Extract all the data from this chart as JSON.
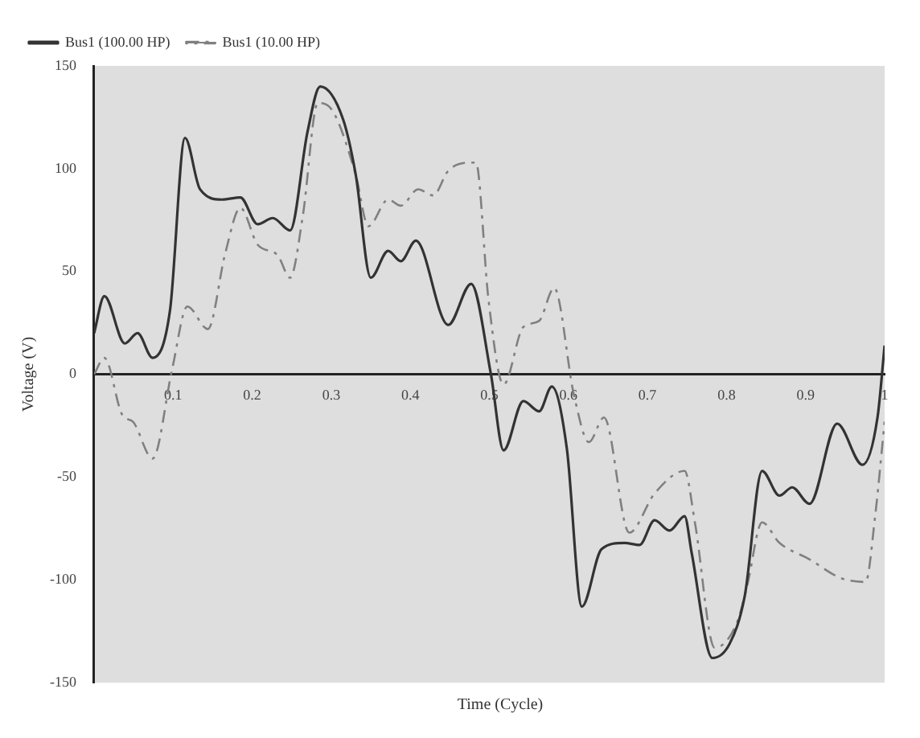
{
  "chart_data": {
    "type": "line",
    "xlabel": "Time (Cycle)",
    "ylabel": "Voltage (V)",
    "xlim": [
      0,
      1.0
    ],
    "xticks": [
      0.1,
      0.2,
      0.3,
      0.4,
      0.5,
      0.6,
      0.7,
      0.8,
      0.9,
      1.0
    ],
    "ylim": [
      -150,
      150
    ],
    "yticks": [
      -150,
      -100,
      -50,
      0,
      50,
      100,
      150
    ],
    "grid": false,
    "legend": "top left",
    "marker": "none",
    "series": [
      {
        "name": "Bus1 (100.00 HP)",
        "color": "#333333",
        "line_style": "solid",
        "x": [
          0,
          0.013,
          0.039,
          0.055,
          0.074,
          0.096,
          0.115,
          0.134,
          0.162,
          0.185,
          0.207,
          0.226,
          0.248,
          0.27,
          0.286,
          0.315,
          0.331,
          0.35,
          0.372,
          0.388,
          0.407,
          0.448,
          0.477,
          0.502,
          0.518,
          0.543,
          0.563,
          0.579,
          0.598,
          0.617,
          0.642,
          0.671,
          0.69,
          0.709,
          0.728,
          0.747,
          0.756,
          0.782,
          0.804,
          0.823,
          0.845,
          0.867,
          0.883,
          0.905,
          0.94,
          0.972,
          0.991,
          1.0
        ],
        "values": [
          20,
          38,
          15,
          20,
          8,
          31,
          115,
          90,
          85,
          86,
          73,
          76,
          70,
          118,
          140,
          124,
          97,
          47,
          60,
          55,
          65,
          24,
          44,
          0,
          -37,
          -13,
          -18,
          -6,
          -36,
          -113,
          -85,
          -82,
          -83,
          -71,
          -76,
          -69,
          -87,
          -138,
          -131,
          -108,
          -47,
          -59,
          -55,
          -63,
          -24,
          -44,
          -21,
          14
        ]
      },
      {
        "name": "Bus1 (10.00 HP)",
        "color": "#808080",
        "line_style": "dashed",
        "x": [
          0,
          0.013,
          0.036,
          0.049,
          0.074,
          0.099,
          0.118,
          0.144,
          0.166,
          0.185,
          0.207,
          0.232,
          0.248,
          0.264,
          0.283,
          0.302,
          0.331,
          0.347,
          0.372,
          0.388,
          0.41,
          0.429,
          0.448,
          0.477,
          0.483,
          0.499,
          0.518,
          0.543,
          0.563,
          0.582,
          0.607,
          0.626,
          0.645,
          0.677,
          0.709,
          0.747,
          0.76,
          0.785,
          0.813,
          0.826,
          0.845,
          0.867,
          0.905,
          0.944,
          0.976,
          0.988,
          1.0
        ],
        "values": [
          0,
          8,
          -20,
          -23,
          -41,
          3,
          33,
          22,
          59,
          81,
          63,
          58,
          47,
          77,
          132,
          128,
          97,
          72,
          85,
          82,
          90,
          87,
          99,
          103,
          103,
          36,
          -5,
          23,
          26,
          42,
          -10,
          -33,
          -21,
          -77,
          -58,
          -47,
          -72,
          -133,
          -121,
          -103,
          -72,
          -82,
          -90,
          -99,
          -101,
          -69,
          -23
        ]
      }
    ]
  }
}
